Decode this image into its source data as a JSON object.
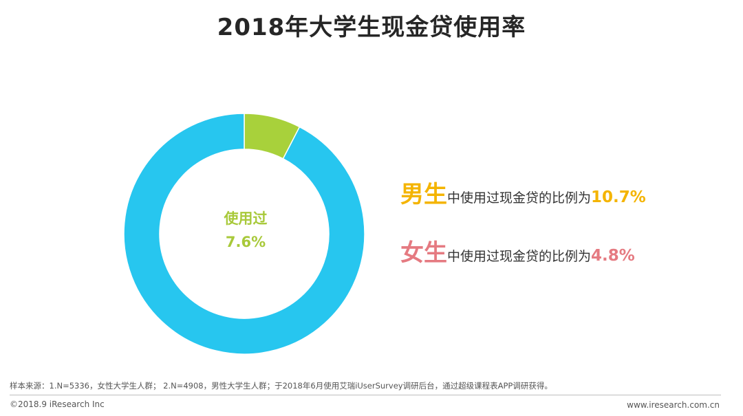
{
  "title": "2018年大学生现金贷使用率",
  "chart_data": {
    "type": "pie",
    "variant": "donut",
    "slices": [
      {
        "label": "使用过",
        "value": 7.6,
        "color": "#a8d13b"
      },
      {
        "label": "",
        "value": 92.4,
        "color": "#27c6ef"
      }
    ],
    "center_label": "使用过",
    "center_value": "7.6%"
  },
  "stats": {
    "male": {
      "big": "男生",
      "middle": "中使用过现金贷的比例为",
      "value": "10.7%",
      "color": "#f4b400"
    },
    "female": {
      "big": "女生",
      "middle": "中使用过现金贷的比例为",
      "value": "4.8%",
      "color": "#e57a81"
    }
  },
  "footer": {
    "source": "样本来源：1.N=5336，女性大学生人群； 2.N=4908，男性大学生人群；于2018年6月使用艾瑞iUserSurvey调研后台，通过超级课程表APP调研获得。",
    "copyright": "©2018.9 iResearch Inc",
    "website": "www.iresearch.com.cn"
  }
}
